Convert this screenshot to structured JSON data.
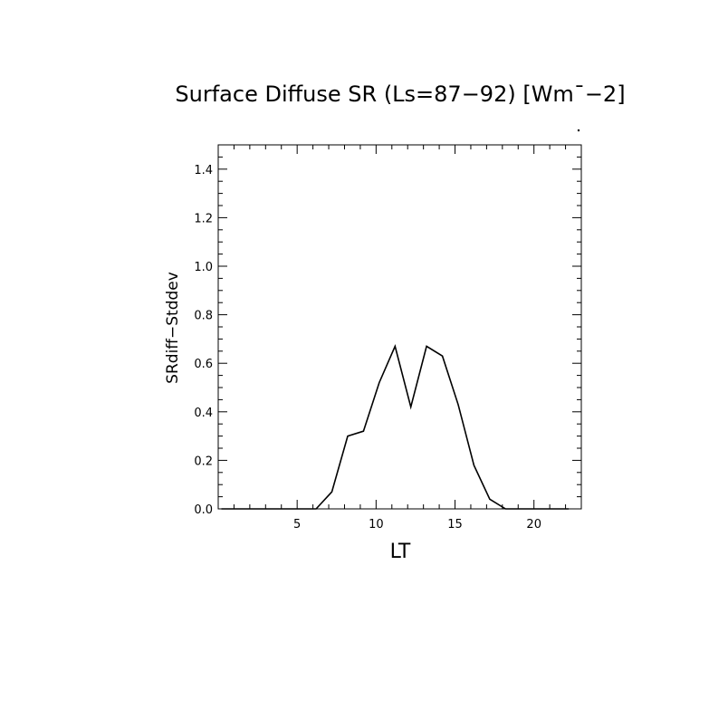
{
  "chart_data": {
    "type": "line",
    "title": "Surface Diffuse SR (Ls=87−92) [Wm¯−2]",
    "xlabel": "LT",
    "ylabel": "SRdiff−Stddev",
    "xlim": [
      0,
      23
    ],
    "ylim": [
      0,
      1.5
    ],
    "x_ticks": [
      5,
      10,
      15,
      20
    ],
    "x_tick_labels": [
      "5",
      "10",
      "15",
      "20"
    ],
    "y_ticks": [
      0.0,
      0.2,
      0.4,
      0.6,
      0.8,
      1.0,
      1.2,
      1.4
    ],
    "y_tick_labels": [
      "0.0",
      "0.2",
      "0.4",
      "0.6",
      "0.8",
      "1.0",
      "1.2",
      "1.4"
    ],
    "grid": false,
    "series": [
      {
        "x": [
          0.2,
          1.2,
          2.2,
          3.2,
          4.2,
          5.2,
          6.2,
          7.2,
          8.2,
          9.2,
          10.2,
          11.2,
          12.2,
          13.2,
          14.2,
          15.2,
          16.2,
          17.2,
          18.2,
          19.2,
          20.2,
          21.2,
          22.2
        ],
        "values": [
          0,
          0,
          0,
          0,
          0,
          0,
          0,
          0.07,
          0.3,
          0.32,
          0.52,
          0.67,
          0.42,
          0.67,
          0.63,
          0.43,
          0.18,
          0.04,
          0,
          0,
          0,
          0,
          0
        ]
      }
    ],
    "colors": {
      "line": "#000000",
      "axes": "#000000",
      "background": "#ffffff"
    }
  }
}
